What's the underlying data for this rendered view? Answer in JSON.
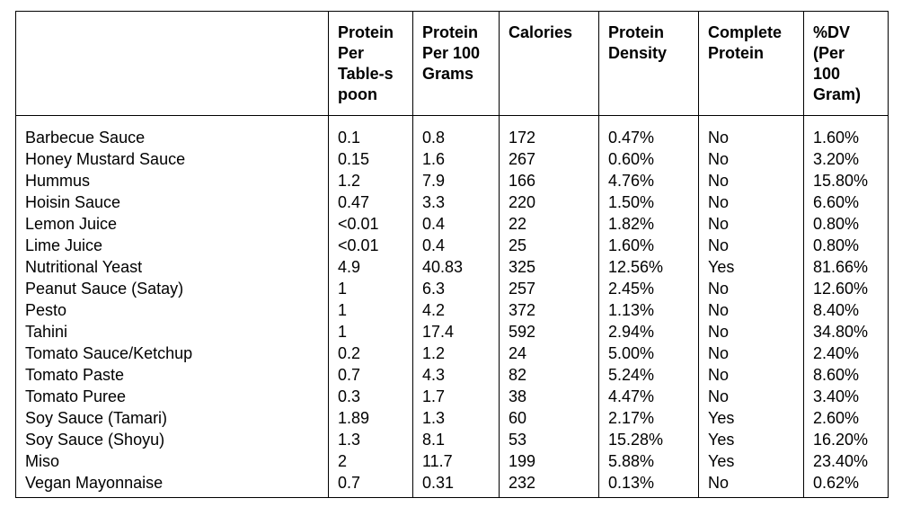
{
  "table": {
    "headers": [
      "",
      "Protein Per Table-s poon",
      "Protein Per 100 Grams",
      "Calories",
      "Protein Density",
      "Complete Protein",
      "%DV (Per 100 Gram)"
    ],
    "header_lines": [
      [],
      [
        "Protein",
        "Per",
        "Table-s",
        "poon"
      ],
      [
        "Protein",
        "Per 100",
        "Grams"
      ],
      [
        "Calories"
      ],
      [
        "Protein",
        "Density"
      ],
      [
        "Complete",
        "Protein"
      ],
      [
        "%DV",
        "(Per",
        "100",
        "Gram)"
      ]
    ],
    "rows": [
      [
        "Barbecue Sauce",
        "0.1",
        "0.8",
        "172",
        "0.47%",
        "No",
        "1.60%"
      ],
      [
        "Honey Mustard Sauce",
        "0.15",
        "1.6",
        "267",
        "0.60%",
        "No",
        "3.20%"
      ],
      [
        "Hummus",
        "1.2",
        "7.9",
        "166",
        "4.76%",
        "No",
        "15.80%"
      ],
      [
        "Hoisin Sauce",
        "0.47",
        "3.3",
        "220",
        "1.50%",
        "No",
        "6.60%"
      ],
      [
        "Lemon Juice",
        "<0.01",
        "0.4",
        "22",
        "1.82%",
        "No",
        "0.80%"
      ],
      [
        "Lime Juice",
        "<0.01",
        "0.4",
        "25",
        "1.60%",
        "No",
        "0.80%"
      ],
      [
        "Nutritional Yeast",
        "4.9",
        "40.83",
        "325",
        "12.56%",
        "Yes",
        "81.66%"
      ],
      [
        "Peanut Sauce (Satay)",
        "1",
        "6.3",
        "257",
        "2.45%",
        "No",
        "12.60%"
      ],
      [
        "Pesto",
        "1",
        "4.2",
        "372",
        "1.13%",
        "No",
        "8.40%"
      ],
      [
        "Tahini",
        "1",
        "17.4",
        "592",
        "2.94%",
        "No",
        "34.80%"
      ],
      [
        "Tomato Sauce/Ketchup",
        "0.2",
        "1.2",
        "24",
        "5.00%",
        "No",
        "2.40%"
      ],
      [
        "Tomato Paste",
        "0.7",
        "4.3",
        "82",
        "5.24%",
        "No",
        "8.60%"
      ],
      [
        "Tomato Puree",
        "0.3",
        "1.7",
        "38",
        "4.47%",
        "No",
        "3.40%"
      ],
      [
        "Soy Sauce (Tamari)",
        "1.89",
        "1.3",
        "60",
        "2.17%",
        "Yes",
        "2.60%"
      ],
      [
        "Soy Sauce (Shoyu)",
        "1.3",
        "8.1",
        "53",
        "15.28%",
        "Yes",
        "16.20%"
      ],
      [
        "Miso",
        "2",
        "11.7",
        "199",
        "5.88%",
        "Yes",
        "23.40%"
      ],
      [
        "Vegan Mayonnaise",
        "0.7",
        "0.31",
        "232",
        "0.13%",
        "No",
        "0.62%"
      ]
    ]
  }
}
